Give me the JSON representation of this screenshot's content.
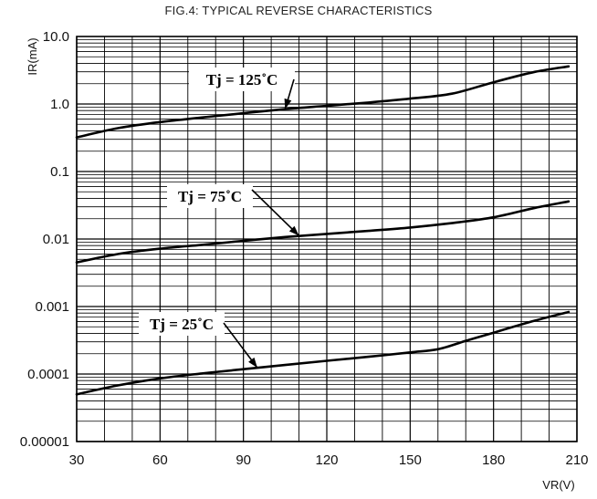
{
  "chart_data": {
    "type": "line",
    "title": "FIG.4: TYPICAL REVERSE CHARACTERISTICS",
    "xlabel": "VR(V)",
    "ylabel": "IR(mA)",
    "xscale": "linear",
    "yscale": "log",
    "xlim": [
      30,
      210
    ],
    "ylim": [
      1e-05,
      10.0
    ],
    "xticks": [
      30,
      60,
      90,
      120,
      150,
      180,
      210
    ],
    "xtick_labels": [
      "30",
      "60",
      "90",
      "120",
      "150",
      "180",
      "210"
    ],
    "yticks": [
      1e-05,
      0.0001,
      0.001,
      0.01,
      0.1,
      1.0,
      10.0
    ],
    "ytick_labels": [
      "0.00001",
      "0.0001",
      "0.001",
      "0.01",
      "0.1",
      "1.0",
      "10.0"
    ],
    "grid": true,
    "series": [
      {
        "name": "Tj = 125˚C",
        "x": [
          30,
          45,
          60,
          75,
          90,
          105,
          120,
          135,
          150,
          165,
          180,
          195,
          207
        ],
        "y": [
          0.32,
          0.44,
          0.54,
          0.63,
          0.73,
          0.84,
          0.94,
          1.05,
          1.2,
          1.42,
          2.1,
          3.0,
          3.6
        ]
      },
      {
        "name": "Tj = 75˚C",
        "x": [
          30,
          45,
          60,
          75,
          90,
          105,
          120,
          135,
          150,
          165,
          180,
          195,
          207
        ],
        "y": [
          0.0045,
          0.006,
          0.0072,
          0.0082,
          0.0094,
          0.0107,
          0.0119,
          0.0132,
          0.0148,
          0.0172,
          0.021,
          0.029,
          0.036
        ]
      },
      {
        "name": "Tj = 25˚C",
        "x": [
          30,
          45,
          60,
          75,
          90,
          105,
          120,
          135,
          150,
          160,
          170,
          180,
          195,
          207
        ],
        "y": [
          5e-05,
          6.8e-05,
          8.6e-05,
          0.000102,
          0.000118,
          0.000136,
          0.000157,
          0.00018,
          0.000209,
          0.000233,
          0.00031,
          0.00041,
          0.00062,
          0.00083
        ]
      }
    ],
    "annotations": [
      {
        "text": "Tj = 125˚C",
        "points_to": [
          105,
          0.84
        ]
      },
      {
        "text": "Tj = 75˚C",
        "points_to": [
          110,
          0.0112
        ]
      },
      {
        "text": "Tj = 25˚C",
        "points_to": [
          95,
          0.000124
        ]
      }
    ]
  }
}
